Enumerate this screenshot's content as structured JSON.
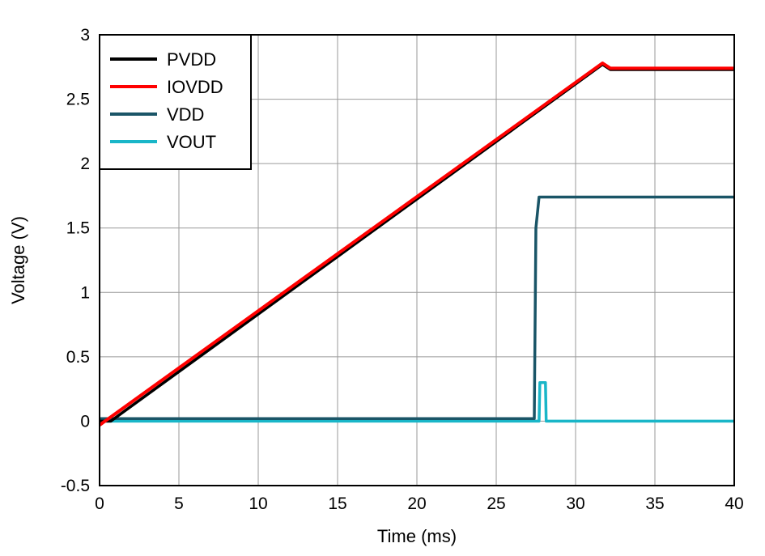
{
  "chart_data": {
    "type": "line",
    "title": "",
    "xlabel": "Time (ms)",
    "ylabel": "Voltage (V)",
    "xlim": [
      0,
      40
    ],
    "ylim": [
      -0.5,
      3
    ],
    "xticks": [
      0,
      5,
      10,
      15,
      20,
      25,
      30,
      35,
      40
    ],
    "yticks": [
      -0.5,
      0,
      0.5,
      1,
      1.5,
      2,
      2.5,
      3
    ],
    "xtick_labels": [
      "0",
      "5",
      "10",
      "15",
      "20",
      "25",
      "30",
      "35",
      "40"
    ],
    "ytick_labels": [
      "-0.5",
      "0",
      "0.5",
      "1",
      "1.5",
      "2",
      "2.5",
      "3"
    ],
    "grid": true,
    "legend_position": "top-left",
    "series": [
      {
        "name": "PVDD",
        "color": "#000000",
        "x": [
          0,
          0.7,
          31.7,
          32.2,
          40
        ],
        "y": [
          0.0,
          0.0,
          2.77,
          2.73,
          2.73
        ]
      },
      {
        "name": "IOVDD",
        "color": "#ff0000",
        "x": [
          0,
          31.7,
          32.2,
          40
        ],
        "y": [
          -0.03,
          2.78,
          2.74,
          2.74
        ]
      },
      {
        "name": "VDD",
        "color": "#1a5567",
        "x": [
          0,
          27.4,
          27.5,
          27.7,
          40
        ],
        "y": [
          0.02,
          0.02,
          1.5,
          1.74,
          1.74
        ]
      },
      {
        "name": "VOUT",
        "color": "#19b6c8",
        "x": [
          0,
          27.7,
          27.75,
          28.1,
          28.15,
          40
        ],
        "y": [
          0.0,
          0.0,
          0.3,
          0.3,
          0.0,
          0.0
        ]
      }
    ]
  }
}
